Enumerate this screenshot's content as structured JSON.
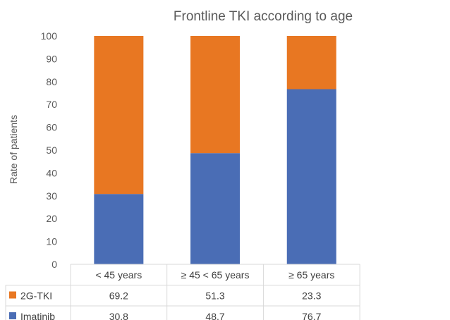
{
  "chart_data": {
    "type": "bar",
    "stacked": true,
    "title": "Frontline TKI according to age",
    "xlabel": "",
    "ylabel": "Rate of patients",
    "ylim": [
      0,
      100
    ],
    "yticks": [
      0,
      10,
      20,
      30,
      40,
      50,
      60,
      70,
      80,
      90,
      100
    ],
    "grid": false,
    "legend": "data-table",
    "categories": [
      "< 45 years",
      "≥ 45 < 65 years",
      "≥ 65 years"
    ],
    "series": [
      {
        "name": "Imatinib",
        "values": [
          30.8,
          48.7,
          76.7
        ],
        "color": "#4a6db5"
      },
      {
        "name": "2G-TKI",
        "values": [
          69.2,
          51.3,
          23.3
        ],
        "color": "#e87722"
      }
    ],
    "table_rows": [
      {
        "name": "2G-TKI",
        "values": [
          "69.2",
          "51.3",
          "23.3"
        ],
        "color": "#e87722"
      },
      {
        "name": "Imatinib",
        "values": [
          "30.8",
          "48.7",
          "76.7"
        ],
        "color": "#4a6db5"
      }
    ]
  }
}
